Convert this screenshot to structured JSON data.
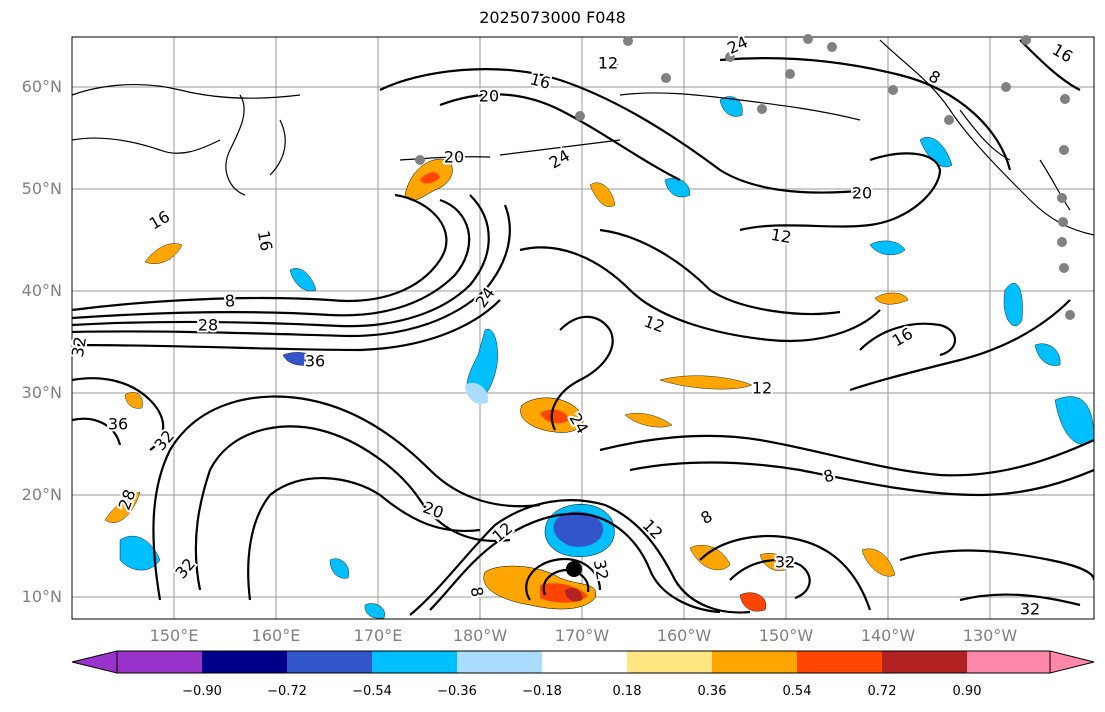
{
  "title": "2025073000 F048",
  "latitude_labels": [
    "60°N",
    "50°N",
    "40°N",
    "30°N",
    "20°N",
    "10°N"
  ],
  "longitude_labels": [
    "150°E",
    "160°E",
    "170°E",
    "180°W",
    "170°W",
    "160°W",
    "150°W",
    "140°W",
    "130°W"
  ],
  "contour_labels": [
    "12",
    "16",
    "20",
    "24",
    "8",
    "16",
    "16",
    "16",
    "20",
    "24",
    "24",
    "12",
    "12",
    "20",
    "8",
    "28",
    "36",
    "36",
    "32",
    "32",
    "24",
    "12",
    "12",
    "16",
    "8",
    "20",
    "12",
    "8",
    "12",
    "32",
    "32",
    "32",
    "28",
    "32",
    "8"
  ],
  "colorbar": {
    "ticks": [
      "−0.90",
      "−0.72",
      "−0.54",
      "−0.36",
      "−0.18",
      "0.18",
      "0.36",
      "0.54",
      "0.72",
      "0.90"
    ],
    "colors": [
      "#9933cc",
      "#00008b",
      "#3355cc",
      "#00bfff",
      "#aadcff",
      "#ffffff",
      "#ffe680",
      "#ffa500",
      "#ff4500",
      "#b22222",
      "#ff88aa",
      "#ff88aa"
    ]
  },
  "colors": {
    "contour": "#000000",
    "grid": "#888888",
    "station_marker": "#808080",
    "storm_marker": "#000000"
  }
}
